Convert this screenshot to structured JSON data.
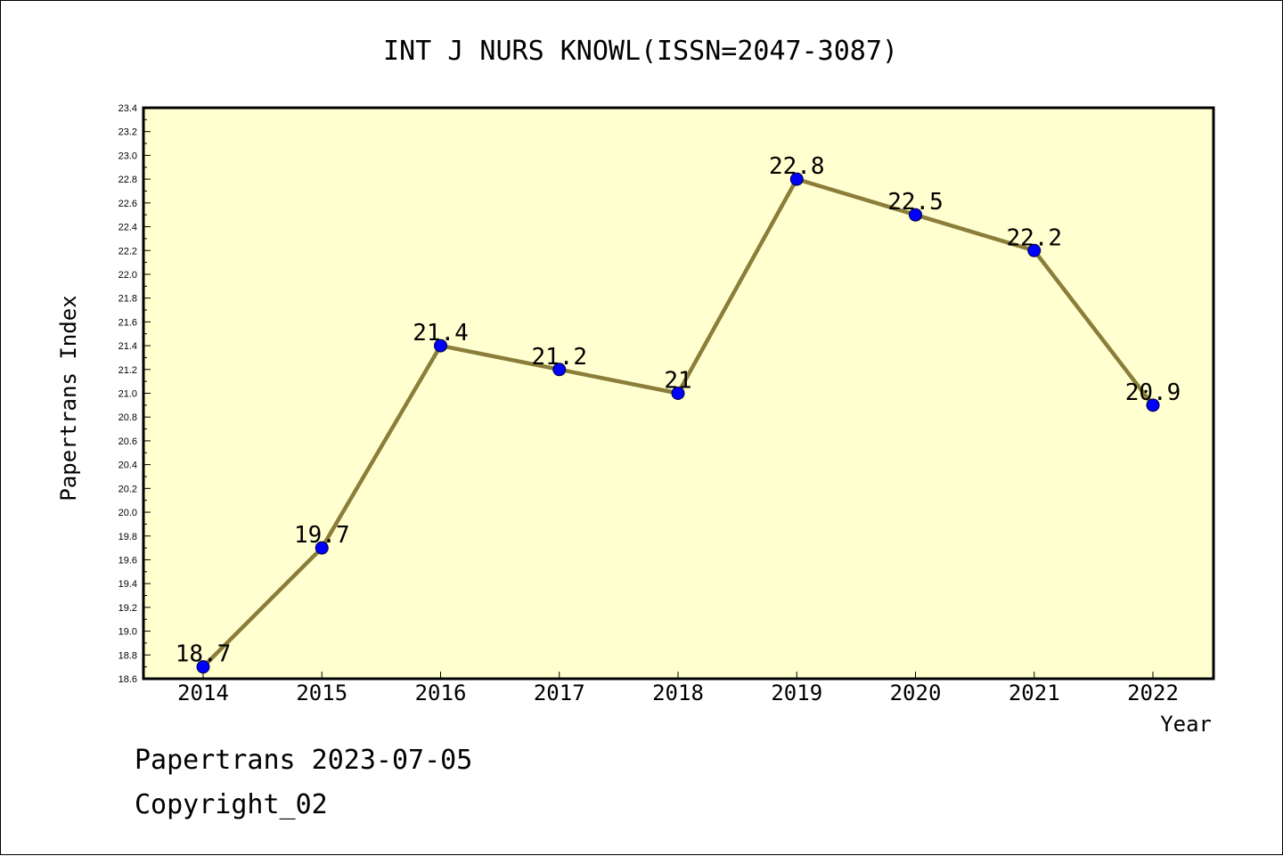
{
  "chart_data": {
    "type": "line",
    "title": "INT J NURS KNOWL(ISSN=2047-3087)",
    "xlabel": "Year",
    "ylabel": "Papertrans Index",
    "categories": [
      "2014",
      "2015",
      "2016",
      "2017",
      "2018",
      "2019",
      "2020",
      "2021",
      "2022"
    ],
    "series": [
      {
        "values": [
          18.7,
          19.7,
          21.4,
          21.2,
          21,
          22.8,
          22.5,
          22.2,
          20.9
        ],
        "labels": [
          "18.7",
          "19.7",
          "21.4",
          "21.2",
          "21",
          "22.8",
          "22.5",
          "22.2",
          "20.9"
        ]
      }
    ],
    "ylim": [
      18.6,
      23.4
    ],
    "yticks": [
      "18.6",
      "18.8",
      "19.0",
      "19.2",
      "19.4",
      "19.6",
      "19.8",
      "20.0",
      "20.2",
      "20.4",
      "20.6",
      "20.8",
      "21.0",
      "21.2",
      "21.4",
      "21.6",
      "21.8",
      "22.0",
      "22.2",
      "22.4",
      "22.6",
      "22.8",
      "23.0",
      "23.2",
      "23.4"
    ],
    "grid": false,
    "legend": "none",
    "colors": {
      "plot_background": "#ffffd0",
      "line": "#8b7d3a",
      "marker": "#0000ff"
    }
  },
  "footer": {
    "line1": "Papertrans 2023-07-05",
    "line2": "Copyright_02"
  }
}
